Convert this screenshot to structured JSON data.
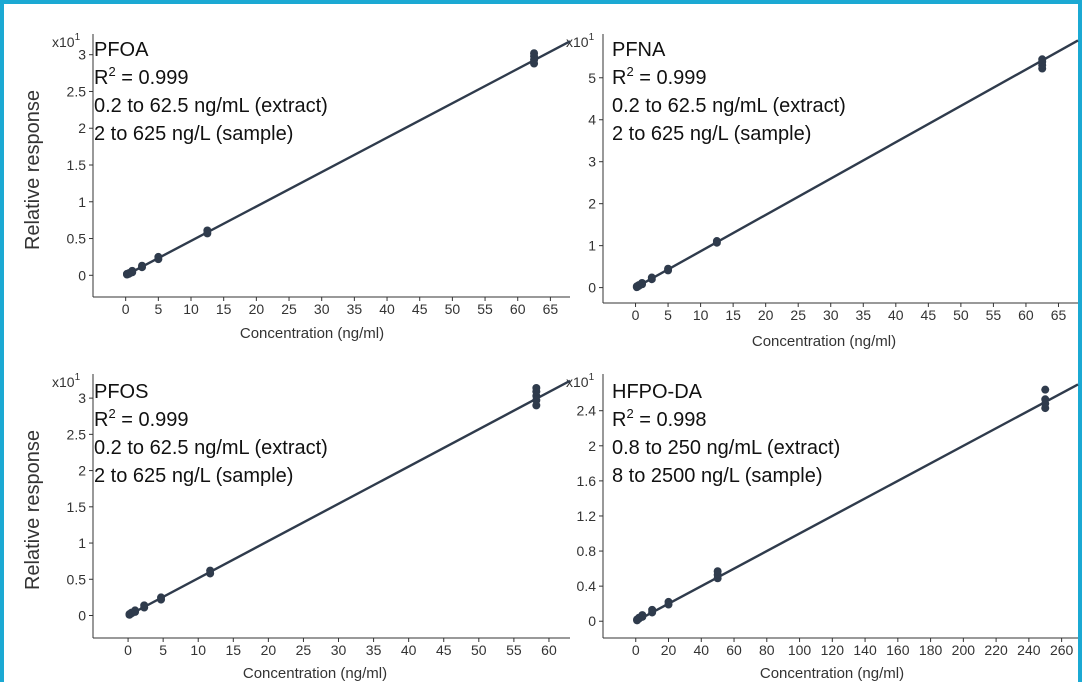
{
  "chart_data": [
    {
      "type": "scatter",
      "title": "",
      "ylabel": "Relative response",
      "xlabel": "Concentration (ng/ml)",
      "y_exponent_base": "x10",
      "y_exponent_power": "1",
      "xlim": [
        -5,
        68
      ],
      "ylim": [
        -0.2,
        3.2
      ],
      "x_ticks": [
        0,
        5,
        10,
        15,
        20,
        25,
        30,
        35,
        40,
        45,
        50,
        55,
        60,
        65
      ],
      "x_tick_labels": [
        "0",
        "5",
        "10",
        "15",
        "20",
        "25",
        "30",
        "35",
        "40",
        "45",
        "50",
        "55",
        "60",
        "65"
      ],
      "y_ticks": [
        0,
        0.5,
        1,
        1.5,
        2,
        2.5,
        3
      ],
      "y_tick_labels": [
        "0",
        "0.5",
        "1",
        "1.5",
        "2",
        "2.5",
        "3"
      ],
      "annotation": {
        "compound": "PFOA",
        "r2_base": "R",
        "r2_exp": "2",
        "r2_rest": " = 0.999",
        "range_extract": "0.2 to 62.5 ng/mL (extract)",
        "range_sample": "2 to 625 ng/L (sample)"
      },
      "fit": {
        "slope": 0.0468,
        "intercept": 0.0
      },
      "points": [
        {
          "x": 0.2,
          "y": 0.01
        },
        {
          "x": 0.2,
          "y": 0.02
        },
        {
          "x": 0.5,
          "y": 0.02
        },
        {
          "x": 0.5,
          "y": 0.03
        },
        {
          "x": 1.0,
          "y": 0.04
        },
        {
          "x": 1.0,
          "y": 0.06
        },
        {
          "x": 2.5,
          "y": 0.11
        },
        {
          "x": 2.5,
          "y": 0.13
        },
        {
          "x": 5.0,
          "y": 0.22
        },
        {
          "x": 5.0,
          "y": 0.25
        },
        {
          "x": 12.5,
          "y": 0.57
        },
        {
          "x": 12.5,
          "y": 0.61
        },
        {
          "x": 62.5,
          "y": 2.88
        },
        {
          "x": 62.5,
          "y": 2.93
        },
        {
          "x": 62.5,
          "y": 2.98
        },
        {
          "x": 62.5,
          "y": 3.02
        }
      ]
    },
    {
      "type": "scatter",
      "title": "",
      "ylabel": "",
      "xlabel": "Concentration (ng/ml)",
      "y_exponent_base": "x10",
      "y_exponent_power": "1",
      "xlim": [
        -5,
        68
      ],
      "ylim": [
        -0.2,
        5.9
      ],
      "x_ticks": [
        0,
        5,
        10,
        15,
        20,
        25,
        30,
        35,
        40,
        45,
        50,
        55,
        60,
        65
      ],
      "x_tick_labels": [
        "0",
        "5",
        "10",
        "15",
        "20",
        "25",
        "30",
        "35",
        "40",
        "45",
        "50",
        "55",
        "60",
        "65"
      ],
      "y_ticks": [
        0,
        1,
        2,
        3,
        4,
        5
      ],
      "y_tick_labels": [
        "0",
        "1",
        "2",
        "3",
        "4",
        "5"
      ],
      "annotation": {
        "compound": "PFNA",
        "r2_base": "R",
        "r2_exp": "2",
        "r2_rest": " = 0.999",
        "range_extract": "0.2 to 62.5 ng/mL (extract)",
        "range_sample": "2 to 625 ng/L (sample)"
      },
      "fit": {
        "slope": 0.0866,
        "intercept": 0.0
      },
      "points": [
        {
          "x": 0.2,
          "y": 0.01
        },
        {
          "x": 0.2,
          "y": 0.03
        },
        {
          "x": 0.5,
          "y": 0.04
        },
        {
          "x": 0.5,
          "y": 0.06
        },
        {
          "x": 1.0,
          "y": 0.08
        },
        {
          "x": 1.0,
          "y": 0.11
        },
        {
          "x": 2.5,
          "y": 0.2
        },
        {
          "x": 2.5,
          "y": 0.24
        },
        {
          "x": 5.0,
          "y": 0.41
        },
        {
          "x": 5.0,
          "y": 0.45
        },
        {
          "x": 12.5,
          "y": 1.07
        },
        {
          "x": 12.5,
          "y": 1.11
        },
        {
          "x": 62.5,
          "y": 5.22
        },
        {
          "x": 62.5,
          "y": 5.3
        },
        {
          "x": 62.5,
          "y": 5.38
        },
        {
          "x": 62.5,
          "y": 5.44
        }
      ]
    },
    {
      "type": "scatter",
      "title": "",
      "ylabel": "Relative response",
      "xlabel": "Concentration (ng/ml)",
      "y_exponent_base": "x10",
      "y_exponent_power": "1",
      "xlim": [
        -5,
        63
      ],
      "ylim": [
        -0.2,
        3.25
      ],
      "x_ticks": [
        0,
        5,
        10,
        15,
        20,
        25,
        30,
        35,
        40,
        45,
        50,
        55,
        60
      ],
      "x_tick_labels": [
        "0",
        "5",
        "10",
        "15",
        "20",
        "25",
        "30",
        "35",
        "40",
        "45",
        "50",
        "55",
        "60"
      ],
      "y_ticks": [
        0,
        0.5,
        1,
        1.5,
        2,
        2.5,
        3
      ],
      "y_tick_labels": [
        "0",
        "0.5",
        "1",
        "1.5",
        "2",
        "2.5",
        "3"
      ],
      "annotation": {
        "compound": "PFOS",
        "r2_base": "R",
        "r2_exp": "2",
        "r2_rest": " = 0.999",
        "range_extract": "0.2 to 62.5 ng/mL (extract)",
        "range_sample": "2 to 625 ng/L (sample)"
      },
      "fit": {
        "slope": 0.0514,
        "intercept": 0.0
      },
      "points": [
        {
          "x": 0.2,
          "y": 0.01
        },
        {
          "x": 0.2,
          "y": 0.02
        },
        {
          "x": 0.5,
          "y": 0.03
        },
        {
          "x": 0.5,
          "y": 0.04
        },
        {
          "x": 1.0,
          "y": 0.05
        },
        {
          "x": 1.0,
          "y": 0.07
        },
        {
          "x": 2.3,
          "y": 0.11
        },
        {
          "x": 2.3,
          "y": 0.14
        },
        {
          "x": 4.7,
          "y": 0.22
        },
        {
          "x": 4.7,
          "y": 0.25
        },
        {
          "x": 11.7,
          "y": 0.58
        },
        {
          "x": 11.7,
          "y": 0.62
        },
        {
          "x": 58.2,
          "y": 2.9
        },
        {
          "x": 58.2,
          "y": 2.97
        },
        {
          "x": 58.2,
          "y": 3.03
        },
        {
          "x": 58.2,
          "y": 3.09
        },
        {
          "x": 58.2,
          "y": 3.14
        }
      ]
    },
    {
      "type": "scatter",
      "title": "",
      "ylabel": "",
      "xlabel": "Concentration (ng/ml)",
      "y_exponent_base": "x10",
      "y_exponent_power": "1",
      "xlim": [
        -20,
        270
      ],
      "ylim": [
        -0.1,
        2.75
      ],
      "x_ticks": [
        0,
        20,
        40,
        60,
        80,
        100,
        120,
        140,
        160,
        180,
        200,
        220,
        240,
        260
      ],
      "x_tick_labels": [
        "0",
        "20",
        "40",
        "60",
        "80",
        "100",
        "120",
        "140",
        "160",
        "180",
        "200",
        "220",
        "240",
        "260"
      ],
      "y_ticks": [
        0,
        0.4,
        0.8,
        1.2,
        1.6,
        2,
        2.4
      ],
      "y_tick_labels": [
        "0",
        "0.4",
        "0.8",
        "1.2",
        "1.6",
        "2",
        "2.4"
      ],
      "annotation": {
        "compound": "HFPO-DA",
        "r2_base": "R",
        "r2_exp": "2",
        "r2_rest": " = 0.998",
        "range_extract": "0.8 to 250 ng/mL (extract)",
        "range_sample": "8 to 2500 ng/L (sample)"
      },
      "fit": {
        "slope": 0.01,
        "intercept": 0.0
      },
      "points": [
        {
          "x": 0.8,
          "y": 0.01
        },
        {
          "x": 0.8,
          "y": 0.02
        },
        {
          "x": 2.0,
          "y": 0.03
        },
        {
          "x": 2.0,
          "y": 0.04
        },
        {
          "x": 4.0,
          "y": 0.05
        },
        {
          "x": 4.0,
          "y": 0.07
        },
        {
          "x": 10.0,
          "y": 0.1
        },
        {
          "x": 10.0,
          "y": 0.13
        },
        {
          "x": 20.0,
          "y": 0.19
        },
        {
          "x": 20.0,
          "y": 0.22
        },
        {
          "x": 50.0,
          "y": 0.49
        },
        {
          "x": 50.0,
          "y": 0.53
        },
        {
          "x": 50.0,
          "y": 0.57
        },
        {
          "x": 250.0,
          "y": 2.43
        },
        {
          "x": 250.0,
          "y": 2.48
        },
        {
          "x": 250.0,
          "y": 2.53
        },
        {
          "x": 250.0,
          "y": 2.64
        }
      ]
    }
  ]
}
